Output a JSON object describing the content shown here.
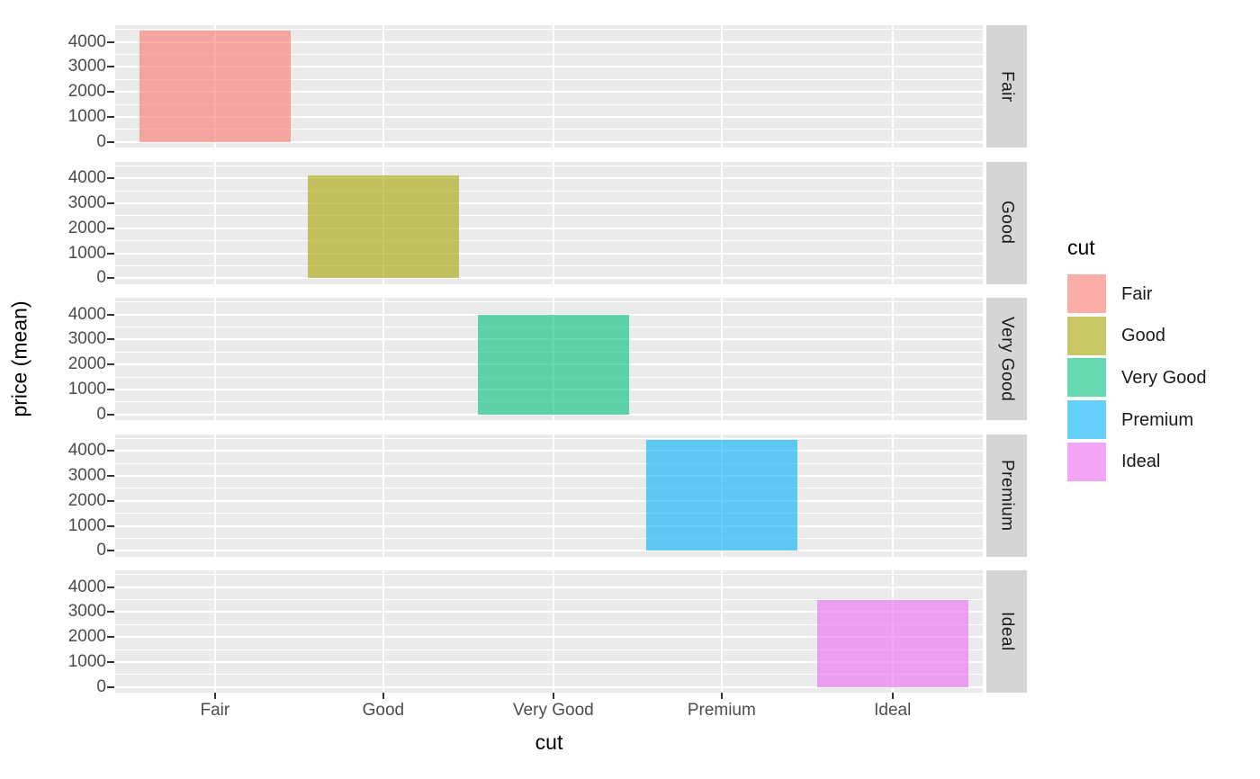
{
  "chart_data": {
    "type": "bar",
    "title": "",
    "xlabel": "cut",
    "ylabel": "price (mean)",
    "categories": [
      "Fair",
      "Good",
      "Very Good",
      "Premium",
      "Ideal"
    ],
    "values": [
      4450,
      4100,
      3990,
      4440,
      3480
    ],
    "facet_labels": [
      "Fair",
      "Good",
      "Very Good",
      "Premium",
      "Ideal"
    ],
    "x_tick_labels": [
      "Fair",
      "Good",
      "Very Good",
      "Premium",
      "Ideal"
    ],
    "y_ticks": [
      0,
      1000,
      2000,
      3000,
      4000
    ],
    "y_minor_ticks": [
      500,
      1500,
      2500,
      3500,
      4500
    ],
    "ylim": [
      -222,
      4672
    ],
    "grid": true,
    "legend_position": "right",
    "legend": {
      "title": "cut",
      "entries": [
        "Fair",
        "Good",
        "Very Good",
        "Premium",
        "Ideal"
      ]
    },
    "colors": {
      "base": {
        "Fair": "#F8766D",
        "Good": "#A3A500",
        "Very Good": "#00BF7D",
        "Premium": "#00B0F6",
        "Ideal": "#E76BF3"
      },
      "fill_alpha": 0.6,
      "panel_bg": "#EBEBEB",
      "strip_bg": "#D5D5D5",
      "grid": "#FFFFFF",
      "axis_text": "#4D4D4D",
      "tick_mark": "#333333",
      "title_text": "#000000"
    }
  }
}
